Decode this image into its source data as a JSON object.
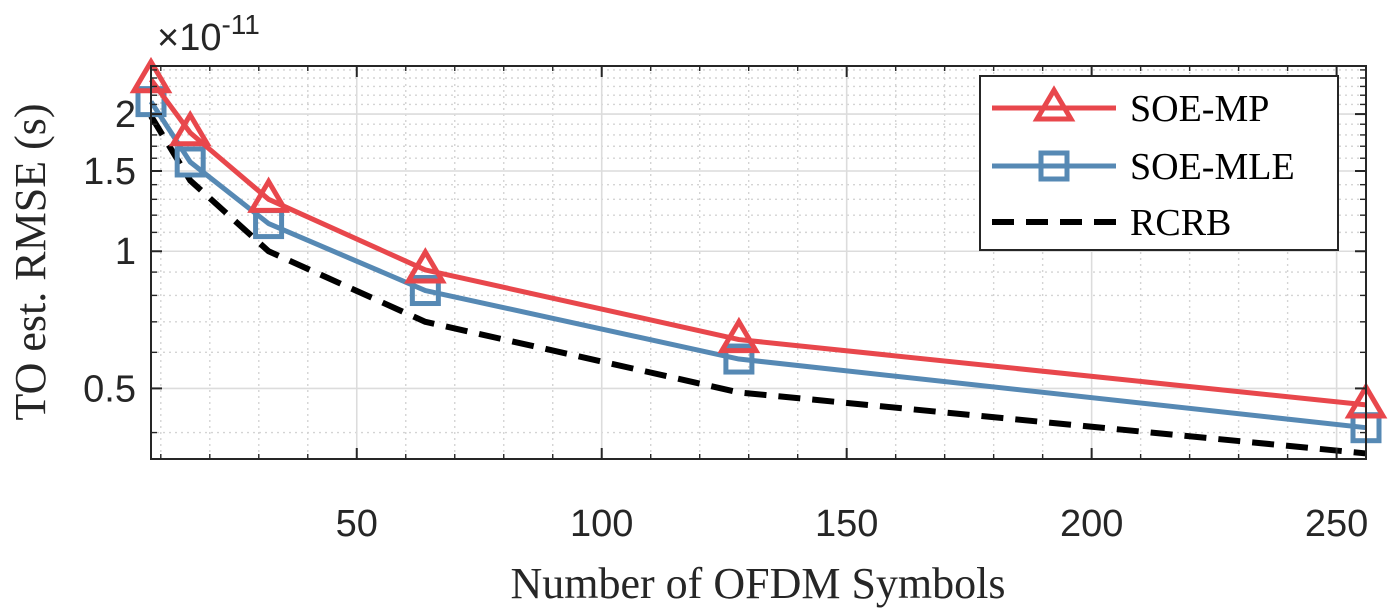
{
  "chart_data": {
    "type": "line",
    "xlabel": "Number of OFDM Symbols",
    "ylabel": "TO est. RMSE (s)",
    "y_scale": "log",
    "y_exponent_label": {
      "base": "×10",
      "exponent": "-11"
    },
    "xlim": [
      8,
      256
    ],
    "ylim": [
      0.35,
      2.55
    ],
    "x_ticks": [
      50,
      100,
      150,
      200,
      250
    ],
    "x_tick_labels": [
      "50",
      "100",
      "150",
      "200",
      "250"
    ],
    "y_ticks": [
      0.5,
      1,
      1.5,
      2
    ],
    "y_tick_labels": [
      "0.5",
      "1",
      "1.5",
      "2"
    ],
    "grid": true,
    "legend_position": "top-right",
    "x": [
      8,
      16,
      32,
      64,
      128,
      256
    ],
    "series": [
      {
        "name": "SOE-MP",
        "color": "#e8474c",
        "marker": "triangle",
        "line_style": "solid",
        "values": [
          2.38,
          1.82,
          1.3,
          0.91,
          0.64,
          0.46
        ]
      },
      {
        "name": "SOE-MLE",
        "color": "#5689b4",
        "marker": "square",
        "line_style": "solid",
        "values": [
          2.13,
          1.57,
          1.15,
          0.82,
          0.58,
          0.41
        ]
      },
      {
        "name": "RCRB",
        "color": "#000000",
        "marker": "none",
        "line_style": "dashed",
        "values": [
          1.98,
          1.43,
          1.0,
          0.7,
          0.49,
          0.36
        ]
      }
    ]
  }
}
